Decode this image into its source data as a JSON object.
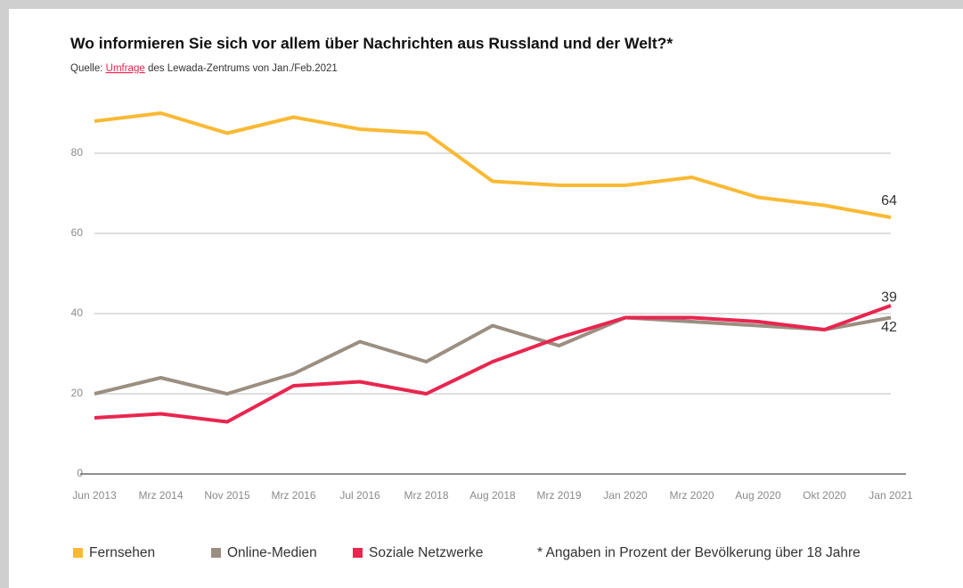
{
  "chart_data": {
    "type": "line",
    "title": "Wo informieren Sie sich vor allem über Nachrichten aus Russland und der Welt?*",
    "subtitle_prefix": "Quelle:",
    "subtitle_link": "Umfrage",
    "subtitle_suffix": "des Lewada-Zentrums von Jan./Feb.2021",
    "note": "* Angaben in Prozent der Bevölkerung über 18 Jahre",
    "categories": [
      "Jun 2013",
      "Mrz 2014",
      "Nov 2015",
      "Mrz 2016",
      "Jul 2016",
      "Mrz 2018",
      "Aug 2018",
      "Mrz 2019",
      "Jan 2020",
      "Mrz 2020",
      "Aug 2020",
      "Okt 2020",
      "Jan 2021"
    ],
    "series": [
      {
        "name": "Fernsehen",
        "color": "#f9b934",
        "values": [
          88,
          90,
          85,
          89,
          86,
          85,
          73,
          72,
          72,
          74,
          69,
          67,
          64
        ]
      },
      {
        "name": "Online-Medien",
        "color": "#9b8f82",
        "values": [
          20,
          24,
          20,
          25,
          33,
          28,
          37,
          32,
          39,
          38,
          37,
          36,
          39
        ]
      },
      {
        "name": "Soziale Netzwerke",
        "color": "#e8264f",
        "values": [
          14,
          15,
          13,
          22,
          23,
          20,
          28,
          34,
          39,
          39,
          38,
          36,
          42
        ]
      }
    ],
    "ylim": [
      0,
      92
    ],
    "yticks": [
      0,
      20,
      40,
      60,
      80
    ],
    "grid": true
  }
}
